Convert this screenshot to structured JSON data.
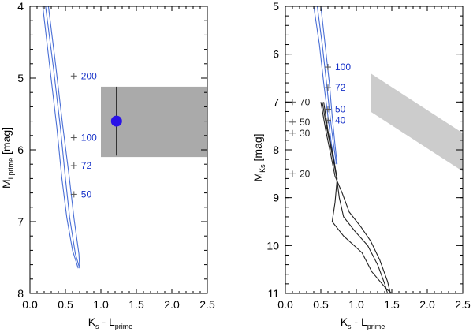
{
  "chart_data": [
    {
      "type": "scatter",
      "xlabel": {
        "main": "K",
        "sub1": "s",
        "mid": " - L",
        "sub2": "prime"
      },
      "ylabel": {
        "main": "M",
        "sub": "Lprime",
        "unit": " [mag]"
      },
      "xlim": [
        0.0,
        2.5
      ],
      "ylim": [
        8.0,
        4.0
      ],
      "x_ticks": [
        0.0,
        0.5,
        1.0,
        1.5,
        2.0,
        2.5
      ],
      "x_tick_labels": [
        "0.0",
        "0.5",
        "1.0",
        "1.5",
        "2.0",
        "2.5"
      ],
      "y_ticks": [
        4,
        5,
        6,
        7,
        8
      ],
      "y_tick_labels": [
        "4",
        "5",
        "6",
        "7",
        "8"
      ],
      "colors": {
        "blue": "#4a6fd6",
        "label_blue": "#1530c8",
        "black": "#222222",
        "dot": "#2a12e8",
        "box": "#aaaaaa"
      },
      "tracks": [
        {
          "name": "isochrone-a",
          "color": "#4a6fd6",
          "points": [
            [
              0.22,
              4.0
            ],
            [
              0.33,
              4.85
            ],
            [
              0.43,
              5.7
            ],
            [
              0.5,
              6.4
            ],
            [
              0.56,
              6.95
            ],
            [
              0.64,
              7.45
            ],
            [
              0.7,
              7.65
            ]
          ]
        },
        {
          "name": "isochrone-b",
          "color": "#4a6fd6",
          "points": [
            [
              0.18,
              4.0
            ],
            [
              0.28,
              4.85
            ],
            [
              0.38,
              5.7
            ],
            [
              0.45,
              6.4
            ],
            [
              0.52,
              6.95
            ],
            [
              0.6,
              7.4
            ],
            [
              0.68,
              7.65
            ]
          ]
        },
        {
          "name": "isochrone-c",
          "color": "#4a6fd6",
          "points": [
            [
              0.26,
              4.0
            ],
            [
              0.36,
              4.8
            ],
            [
              0.46,
              5.65
            ],
            [
              0.55,
              6.35
            ],
            [
              0.62,
              6.95
            ],
            [
              0.69,
              7.45
            ],
            [
              0.7,
              7.62
            ]
          ]
        }
      ],
      "markers": [
        {
          "x": 0.62,
          "y": 4.97,
          "label": "200",
          "color": "#1530c8"
        },
        {
          "x": 0.62,
          "y": 5.83,
          "label": "100",
          "color": "#1530c8"
        },
        {
          "x": 0.62,
          "y": 6.22,
          "label": "72",
          "color": "#1530c8"
        },
        {
          "x": 0.62,
          "y": 6.62,
          "label": "50",
          "color": "#1530c8"
        }
      ],
      "region": {
        "x0": 1.0,
        "x1": 2.5,
        "y0": 5.12,
        "y1": 6.1,
        "color": "#aaaaaa"
      },
      "object": {
        "x": 1.22,
        "y": 5.6,
        "err_y0": 5.12,
        "err_y1": 6.08,
        "color": "#2a12e8"
      }
    },
    {
      "type": "scatter",
      "xlabel": {
        "main": "K",
        "sub1": "s",
        "mid": " - L",
        "sub2": "prime"
      },
      "ylabel": {
        "main": "M",
        "sub": "Ks",
        "unit": " [mag]"
      },
      "xlim": [
        0.0,
        2.5
      ],
      "ylim": [
        11.0,
        5.0
      ],
      "x_ticks": [
        0.0,
        0.5,
        1.0,
        1.5,
        2.0,
        2.5
      ],
      "x_tick_labels": [
        "0.0",
        "0.5",
        "1.0",
        "1.5",
        "2.0",
        "2.5"
      ],
      "y_ticks": [
        5,
        6,
        7,
        8,
        9,
        10,
        11
      ],
      "y_tick_labels": [
        "5",
        "6",
        "7",
        "8",
        "9",
        "10",
        "11"
      ],
      "colors": {
        "blue": "#4a6fd6",
        "label_blue": "#1530c8",
        "black": "#222222",
        "box": "#cccccc"
      },
      "tracks": [
        {
          "name": "isochrone-a",
          "color": "#4a6fd6",
          "points": [
            [
              0.45,
              5.0
            ],
            [
              0.52,
              5.8
            ],
            [
              0.58,
              6.6
            ],
            [
              0.63,
              7.3
            ],
            [
              0.68,
              7.9
            ],
            [
              0.72,
              8.3
            ]
          ]
        },
        {
          "name": "isochrone-b",
          "color": "#4a6fd6",
          "points": [
            [
              0.4,
              5.0
            ],
            [
              0.48,
              5.8
            ],
            [
              0.54,
              6.6
            ],
            [
              0.6,
              7.3
            ],
            [
              0.65,
              7.9
            ],
            [
              0.7,
              8.3
            ]
          ]
        },
        {
          "name": "isochrone-c",
          "color": "#4a6fd6",
          "points": [
            [
              0.5,
              5.0
            ],
            [
              0.56,
              5.8
            ],
            [
              0.62,
              6.6
            ],
            [
              0.66,
              7.3
            ],
            [
              0.7,
              7.9
            ],
            [
              0.73,
              8.3
            ]
          ]
        },
        {
          "name": "isochrone-d",
          "color": "#222222",
          "points": [
            [
              0.54,
              7.0
            ],
            [
              0.6,
              7.6
            ],
            [
              0.67,
              8.1
            ],
            [
              0.73,
              8.6
            ],
            [
              0.7,
              9.1
            ],
            [
              0.66,
              9.5
            ],
            [
              0.82,
              9.8
            ],
            [
              1.08,
              10.15
            ],
            [
              1.22,
              10.55
            ],
            [
              1.42,
              10.9
            ],
            [
              1.5,
              11.0
            ]
          ]
        },
        {
          "name": "isochrone-e",
          "color": "#222222",
          "points": [
            [
              0.5,
              7.0
            ],
            [
              0.57,
              7.6
            ],
            [
              0.64,
              8.1
            ],
            [
              0.7,
              8.55
            ],
            [
              0.8,
              8.9
            ],
            [
              0.9,
              9.3
            ],
            [
              1.06,
              9.6
            ],
            [
              1.2,
              9.9
            ],
            [
              1.33,
              10.3
            ],
            [
              1.44,
              10.75
            ],
            [
              1.48,
              11.0
            ]
          ]
        },
        {
          "name": "isochrone-f",
          "color": "#222222",
          "points": [
            [
              0.52,
              7.0
            ],
            [
              0.59,
              7.6
            ],
            [
              0.66,
              8.1
            ],
            [
              0.72,
              8.55
            ],
            [
              0.76,
              9.0
            ],
            [
              0.82,
              9.4
            ],
            [
              0.98,
              9.7
            ],
            [
              1.16,
              10.0
            ],
            [
              1.3,
              10.4
            ],
            [
              1.4,
              10.8
            ],
            [
              1.44,
              11.0
            ]
          ]
        }
      ],
      "markers": [
        {
          "x": 0.6,
          "y": 6.27,
          "label": "100",
          "color": "#1530c8"
        },
        {
          "x": 0.6,
          "y": 6.7,
          "label": "72",
          "color": "#1530c8"
        },
        {
          "x": 0.6,
          "y": 7.15,
          "label": "50",
          "color": "#1530c8"
        },
        {
          "x": 0.6,
          "y": 7.38,
          "label": "40",
          "color": "#1530c8"
        },
        {
          "x": 0.1,
          "y": 7.0,
          "label": "70",
          "color": "#222222"
        },
        {
          "x": 0.1,
          "y": 7.42,
          "label": "50",
          "color": "#222222"
        },
        {
          "x": 0.1,
          "y": 7.65,
          "label": "30",
          "color": "#222222"
        },
        {
          "x": 0.1,
          "y": 8.5,
          "label": "20",
          "color": "#222222"
        }
      ],
      "band": {
        "x0": 1.2,
        "x1": 2.5,
        "y_top_left": 6.4,
        "y_bottom_left": 7.2,
        "y_top_right": 7.65,
        "y_bottom_right": 8.45,
        "color": "#cccccc"
      }
    }
  ]
}
